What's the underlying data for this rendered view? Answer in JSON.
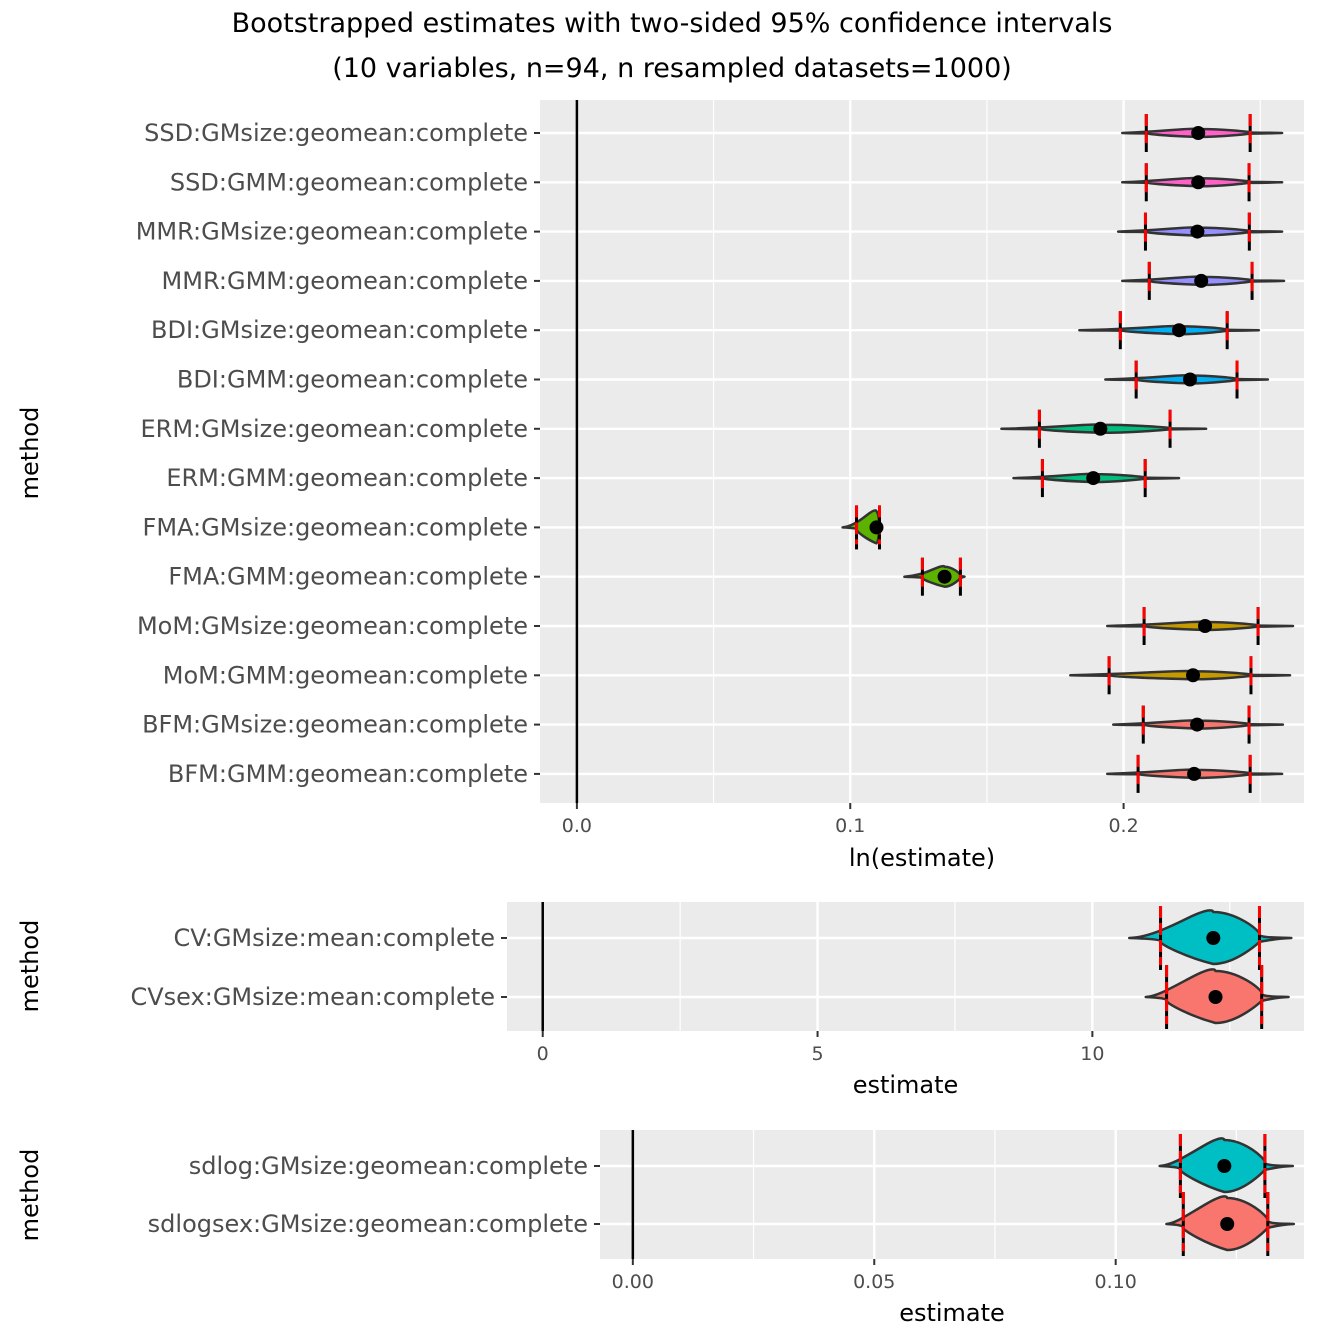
{
  "chart_data": {
    "title": "Bootstrapped estimates with two-sided 95% confidence intervals",
    "subtitle": "(10 variables, n=94, n resampled datasets=1000)",
    "panels": [
      {
        "type": "violin",
        "xlabel": "ln(estimate)",
        "ylabel": "method",
        "xlim": [
          -0.0135,
          0.266
        ],
        "xticks": [
          0.0,
          0.1,
          0.2
        ],
        "xtick_labels": [
          "0.0",
          "0.1",
          "0.2"
        ],
        "reference_line": 0,
        "grid": true,
        "categories": [
          {
            "label": "SSD:GMsize:geomean:complete",
            "color": "#FF61C9",
            "min": 0.1995,
            "ci_low": 0.2083,
            "estimate": 0.2273,
            "ci_high": 0.2463,
            "max": 0.258
          },
          {
            "label": "SSD:GMM:geomean:complete",
            "color": "#FF61C9",
            "min": 0.1995,
            "ci_low": 0.2083,
            "estimate": 0.2273,
            "ci_high": 0.2459,
            "max": 0.258
          },
          {
            "label": "MMR:GMsize:geomean:complete",
            "color": "#9590FF",
            "min": 0.198,
            "ci_low": 0.208,
            "estimate": 0.227,
            "ci_high": 0.246,
            "max": 0.258
          },
          {
            "label": "MMR:GMM:geomean:complete",
            "color": "#9590FF",
            "min": 0.1995,
            "ci_low": 0.2094,
            "estimate": 0.2284,
            "ci_high": 0.247,
            "max": 0.2587
          },
          {
            "label": "BDI:GMsize:geomean:complete",
            "color": "#00B0F6",
            "min": 0.1838,
            "ci_low": 0.1988,
            "estimate": 0.2203,
            "ci_high": 0.2379,
            "max": 0.2495
          },
          {
            "label": "BDI:GMM:geomean:complete",
            "color": "#00B0F6",
            "min": 0.1933,
            "ci_low": 0.2046,
            "estimate": 0.2243,
            "ci_high": 0.2415,
            "max": 0.2528
          },
          {
            "label": "ERM:GMsize:geomean:complete",
            "color": "#00BF7D",
            "min": 0.1553,
            "ci_low": 0.1692,
            "estimate": 0.1915,
            "ci_high": 0.217,
            "max": 0.2302
          },
          {
            "label": "ERM:GMM:geomean:complete",
            "color": "#00BF7D",
            "min": 0.1597,
            "ci_low": 0.1703,
            "estimate": 0.1889,
            "ci_high": 0.2079,
            "max": 0.2203
          },
          {
            "label": "FMA:GMsize:geomean:complete",
            "color": "#5BB300",
            "min": 0.0972,
            "ci_low": 0.1023,
            "estimate": 0.1096,
            "ci_high": 0.1107,
            "max": 0.111
          },
          {
            "label": "FMA:GMM:geomean:complete",
            "color": "#5BB300",
            "min": 0.1198,
            "ci_low": 0.1264,
            "estimate": 0.1345,
            "ci_high": 0.1403,
            "max": 0.1418
          },
          {
            "label": "MoM:GMsize:geomean:complete",
            "color": "#C49A00",
            "min": 0.194,
            "ci_low": 0.2075,
            "estimate": 0.2298,
            "ci_high": 0.2492,
            "max": 0.262
          },
          {
            "label": "MoM:GMM:geomean:complete",
            "color": "#C49A00",
            "min": 0.1805,
            "ci_low": 0.1947,
            "estimate": 0.2254,
            "ci_high": 0.2466,
            "max": 0.2609
          },
          {
            "label": "BFM:GMsize:geomean:complete",
            "color": "#F8766D",
            "min": 0.1962,
            "ci_low": 0.2072,
            "estimate": 0.2269,
            "ci_high": 0.2459,
            "max": 0.2583
          },
          {
            "label": "BFM:GMM:geomean:complete",
            "color": "#F8766D",
            "min": 0.194,
            "ci_low": 0.2053,
            "estimate": 0.2258,
            "ci_high": 0.2463,
            "max": 0.258
          }
        ]
      },
      {
        "type": "violin",
        "xlabel": "estimate",
        "ylabel": "method",
        "xlim": [
          -0.65,
          13.85
        ],
        "xticks": [
          0,
          5,
          10
        ],
        "xtick_labels": [
          "0",
          "5",
          "10"
        ],
        "reference_line": 0,
        "grid": true,
        "categories": [
          {
            "label": "CV:GMsize:mean:complete",
            "color": "#00BFC4",
            "min": 10.67,
            "ci_low": 11.24,
            "estimate": 12.2,
            "ci_high": 13.04,
            "max": 13.62
          },
          {
            "label": "CVsex:GMsize:mean:complete",
            "color": "#F8766D",
            "min": 10.97,
            "ci_low": 11.35,
            "estimate": 12.24,
            "ci_high": 13.08,
            "max": 13.57
          }
        ]
      },
      {
        "type": "violin",
        "xlabel": "estimate",
        "ylabel": "method",
        "xlim": [
          -0.0068,
          0.139
        ],
        "xticks": [
          0.0,
          0.05,
          0.1
        ],
        "xtick_labels": [
          "0.00",
          "0.05",
          "0.10"
        ],
        "reference_line": 0,
        "grid": true,
        "categories": [
          {
            "label": "sdlog:GMsize:geomean:complete",
            "color": "#00BFC4",
            "min": 0.1091,
            "ci_low": 0.1134,
            "estimate": 0.1225,
            "ci_high": 0.1309,
            "max": 0.1367
          },
          {
            "label": "sdlogsex:GMsize:geomean:complete",
            "color": "#F8766D",
            "min": 0.1105,
            "ci_low": 0.114,
            "estimate": 0.1231,
            "ci_high": 0.1315,
            "max": 0.1369
          }
        ]
      }
    ],
    "colors": {
      "panel_background": "#EBEBEB",
      "grid": "#FFFFFF",
      "outline": "#333333",
      "ci_marker": "#FF0000",
      "point": "#000000"
    }
  }
}
